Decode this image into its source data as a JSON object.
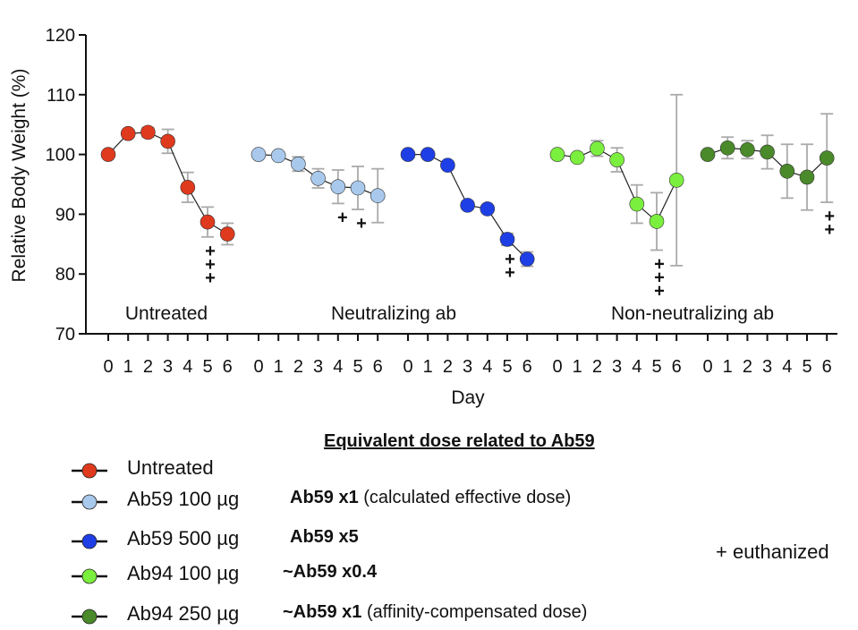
{
  "chart_data": {
    "type": "line",
    "ylabel": "Relative Body Weight (%)",
    "xlabel": "Day",
    "ylim": [
      70,
      120
    ],
    "yticks": [
      70,
      80,
      90,
      100,
      110,
      120
    ],
    "x_tick_labels": [
      "0",
      "1",
      "2",
      "3",
      "4",
      "5",
      "6"
    ],
    "grid": false,
    "group_labels": [
      "Untreated",
      "Neutralizing ab",
      "Non-neutralizing ab"
    ],
    "series": [
      {
        "name": "Untreated",
        "color": "#e03a1e",
        "x": [
          0,
          1,
          2,
          3,
          4,
          5,
          6
        ],
        "y": [
          100,
          103.5,
          103.7,
          102.2,
          94.5,
          88.7,
          86.7
        ],
        "err": [
          0,
          0.6,
          0.8,
          2.0,
          2.5,
          2.5,
          1.8
        ],
        "euthanized": [
          0,
          0,
          0,
          0,
          0,
          3,
          0
        ]
      },
      {
        "name": "Ab59 100 µg",
        "color": "#a9c9ec",
        "x": [
          0,
          1,
          2,
          3,
          4,
          5,
          6
        ],
        "y": [
          100,
          99.8,
          98.4,
          96.0,
          94.6,
          94.4,
          93.1
        ],
        "err": [
          0,
          0.5,
          1.2,
          1.6,
          2.8,
          3.6,
          4.5
        ],
        "euthanized": [
          0,
          0,
          0,
          0,
          1,
          1,
          0
        ]
      },
      {
        "name": "Ab59 500 µg",
        "color": "#1f3fe6",
        "x": [
          0,
          1,
          2,
          3,
          4,
          5,
          6
        ],
        "y": [
          100,
          100,
          98.2,
          91.5,
          90.9,
          85.8,
          82.5
        ],
        "err": [
          0,
          0,
          0.5,
          0.6,
          0.5,
          1.0,
          1.2
        ],
        "euthanized": [
          0,
          0,
          0,
          0,
          0,
          2,
          0
        ]
      },
      {
        "name": "Ab94 100 µg",
        "color": "#7bef3e",
        "x": [
          0,
          1,
          2,
          3,
          4,
          5,
          6
        ],
        "y": [
          100,
          99.5,
          101.0,
          99.1,
          91.7,
          88.8,
          95.7
        ],
        "err": [
          0,
          0.5,
          1.3,
          2.0,
          3.2,
          4.8,
          14.3
        ],
        "euthanized": [
          0,
          0,
          0,
          0,
          0,
          3,
          0
        ]
      },
      {
        "name": "Ab94 250 µg",
        "color": "#4a8a2a",
        "x": [
          0,
          1,
          2,
          3,
          4,
          5,
          6
        ],
        "y": [
          100,
          101.1,
          100.8,
          100.4,
          97.2,
          96.2,
          99.4
        ],
        "err": [
          0,
          1.8,
          1.5,
          2.8,
          4.5,
          5.5,
          7.4
        ],
        "euthanized": [
          0,
          0,
          0,
          0,
          0,
          0,
          2
        ]
      }
    ],
    "euthanized_symbol": "+",
    "legend_placement": "bottom"
  },
  "legend": {
    "heading": "Equivalent dose related to Ab59",
    "items": [
      {
        "label": "Untreated",
        "dose_bold": "",
        "dose_note": ""
      },
      {
        "label": "Ab59 100 µg",
        "dose_bold": "Ab59 x1",
        "dose_note": " (calculated effective dose)"
      },
      {
        "label": "Ab59 500 µg",
        "dose_bold": "Ab59 x5",
        "dose_note": ""
      },
      {
        "label": "Ab94 100 µg",
        "dose_bold": "~Ab59 x0.4",
        "dose_note": ""
      },
      {
        "label": "Ab94 250 µg",
        "dose_bold": "~Ab59 x1",
        "dose_note": " (affinity-compensated dose)"
      }
    ],
    "euthanized_note": "+ euthanized"
  }
}
